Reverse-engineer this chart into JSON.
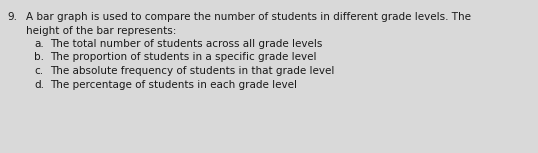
{
  "question_number": "9.",
  "question_line1": "A bar graph is used to compare the number of students in different grade levels. The",
  "question_line2": "height of the bar represents:",
  "options": [
    {
      "label": "a.",
      "text": "The total number of students across all grade levels"
    },
    {
      "label": "b.",
      "text": "The proportion of students in a specific grade level"
    },
    {
      "label": "c.",
      "text": "The absolute frequency of students in that grade level"
    },
    {
      "label": "d.",
      "text": "The percentage of students in each grade level"
    }
  ],
  "background_color": "#d9d9d9",
  "text_color": "#1a1a1a",
  "font_size": 7.5
}
